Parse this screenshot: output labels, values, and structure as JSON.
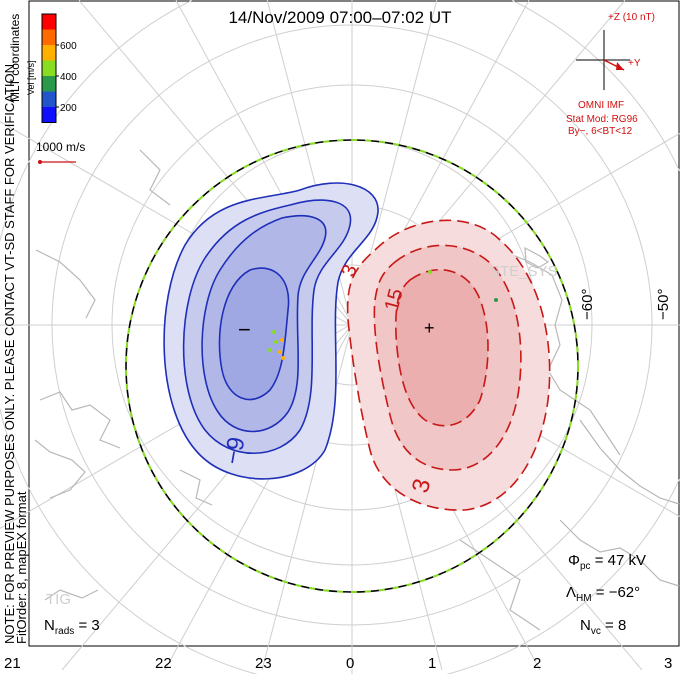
{
  "title": "14/Nov/2009 07:00–07:02 UT",
  "coord_label": "MLT coordinates",
  "colorbar": {
    "label": "Vel [m/s]",
    "ticks": [
      "600",
      "400",
      "200"
    ],
    "colors": [
      "#ff0000",
      "#ff6a00",
      "#ffb000",
      "#88dd22",
      "#2a9a4a",
      "#2255cc",
      "#1010ff"
    ]
  },
  "vector_scale_label": "1000 m/s",
  "side_note_1": "NOTE: FOR PREVIEW PURPOSES ONLY. PLEASE CONTACT VT-SD STAFF FOR VERIFICATION.",
  "side_note_2": "FitOrder: 8, mapEX format",
  "imf": {
    "z_label": "+Z (10 nT)",
    "y_label": "+Y",
    "source": "OMNI IMF",
    "model_line1": "Stat Mod: RG96",
    "model_line2": "By−, 6<BT<12"
  },
  "lat_labels": [
    "−60°",
    "−50°"
  ],
  "contour_labels": {
    "neg": "−9",
    "pos1": "3",
    "pos2": "15",
    "pos3": "3"
  },
  "min_marker": "−",
  "max_marker": "+",
  "watermark": "STE_SYS",
  "station_label": "TIG",
  "mlt_labels": [
    "21",
    "22",
    "23",
    "0",
    "1",
    "2",
    "3"
  ],
  "stats": {
    "phi_symbol": "Φ",
    "phi_sub": "pc",
    "phi_value": "= 47 kV",
    "lambda_symbol": "Λ",
    "lambda_sub": "HM",
    "lambda_value": "= −62°",
    "nrads_symbol": "N",
    "nrads_sub": "rads",
    "nrads_value": "= 3",
    "nvc_symbol": "N",
    "nvc_sub": "vc",
    "nvc_value": "= 8"
  },
  "colors": {
    "negative_cell": "#1f2fb8",
    "positive_cell": "#c81818",
    "boundary_green": "#88dd22",
    "grid": "#c8c8c8",
    "coast": "#b8b8b8"
  }
}
